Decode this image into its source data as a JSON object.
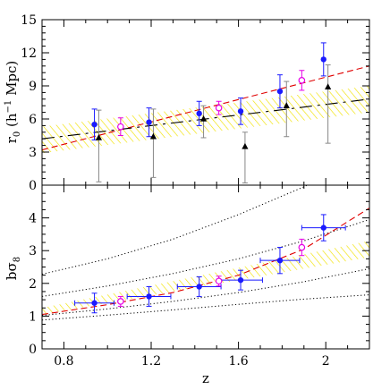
{
  "chart_data": [
    {
      "type": "scatter",
      "panel": "top",
      "ylabel": "r",
      "ylabel_sub": "0",
      "ylabel_rest": " (h",
      "ylabel_sup": "−1",
      "ylabel_end": " Mpc)",
      "ylim": [
        0,
        15
      ],
      "yticks": [
        0,
        3,
        6,
        9,
        12,
        15
      ],
      "xlim": [
        0.7,
        2.2
      ],
      "grid": false,
      "band": {
        "x": [
          0.7,
          2.2
        ],
        "lower": [
          2.9,
          6.6
        ],
        "upper": [
          5.3,
          9.0
        ],
        "color": "#f2e200"
      },
      "lines": [
        {
          "style": "dashed",
          "color": "#e00000",
          "x": [
            0.7,
            2.2
          ],
          "y": [
            3.2,
            10.8
          ]
        },
        {
          "style": "longdash",
          "color": "#000000",
          "x": [
            0.7,
            2.2
          ],
          "y": [
            4.2,
            7.8
          ]
        }
      ],
      "series": [
        {
          "marker": "filled-circle",
          "color": "#1a1aff",
          "x": [
            0.94,
            1.19,
            1.42,
            1.61,
            1.79,
            1.99
          ],
          "y": [
            5.5,
            5.7,
            6.5,
            6.7,
            8.5,
            11.4
          ],
          "yerr": [
            1.4,
            1.3,
            1.1,
            1.2,
            1.5,
            1.5
          ]
        },
        {
          "marker": "open-circle",
          "color": "#e600e6",
          "x": [
            1.06,
            1.51,
            1.89
          ],
          "y": [
            5.3,
            7.0,
            9.5
          ],
          "yerr": [
            0.8,
            0.6,
            0.9
          ]
        },
        {
          "marker": "filled-triangle",
          "color": "#000000",
          "x": [
            0.96,
            1.21,
            1.44,
            1.63,
            1.82,
            2.01
          ],
          "y": [
            4.3,
            4.4,
            6.0,
            3.5,
            7.2,
            8.9
          ],
          "yerr_lo": [
            4.0,
            3.7,
            1.7,
            3.3,
            2.8,
            5.1
          ],
          "yerr_hi": [
            2.5,
            2.5,
            1.2,
            1.3,
            2.2,
            2.0
          ],
          "errcolor": "#888888"
        }
      ]
    },
    {
      "type": "scatter",
      "panel": "bottom",
      "ylabel": "bσ",
      "ylabel_sub": "8",
      "xlabel": "z",
      "ylim": [
        0,
        5
      ],
      "yticks": [
        0,
        1,
        2,
        3,
        4
      ],
      "xlim": [
        0.7,
        2.2
      ],
      "xticks": [
        0.8,
        1.2,
        1.6,
        2.0
      ],
      "xtick_labels": [
        "0.8",
        "1.2",
        "1.6",
        "2"
      ],
      "grid": false,
      "band": {
        "x": [
          0.7,
          2.2
        ],
        "lower": [
          1.05,
          2.8
        ],
        "upper": [
          1.25,
          3.3
        ],
        "color": "#f2e200"
      },
      "dotted_curves": [
        {
          "x": [
            0.7,
            1.0,
            1.3,
            1.6,
            1.9,
            2.2
          ],
          "y": [
            2.28,
            2.75,
            3.35,
            4.1,
            4.95,
            6.0
          ]
        },
        {
          "x": [
            0.7,
            1.0,
            1.3,
            1.6,
            1.9,
            2.2
          ],
          "y": [
            1.6,
            1.92,
            2.3,
            2.75,
            3.3,
            3.95
          ]
        },
        {
          "x": [
            0.7,
            1.0,
            1.3,
            1.6,
            1.9,
            2.2
          ],
          "y": [
            1.02,
            1.22,
            1.45,
            1.72,
            2.05,
            2.45
          ]
        },
        {
          "x": [
            0.7,
            1.0,
            1.3,
            1.6,
            1.9,
            2.2
          ],
          "y": [
            0.88,
            1.03,
            1.19,
            1.36,
            1.52,
            1.65
          ]
        }
      ],
      "lines": [
        {
          "style": "dashed",
          "color": "#e00000",
          "x": [
            0.7,
            1.0,
            1.3,
            1.6,
            1.9,
            2.2
          ],
          "y": [
            1.05,
            1.35,
            1.72,
            2.25,
            3.05,
            4.3
          ]
        }
      ],
      "series": [
        {
          "marker": "filled-circle",
          "color": "#1a1aff",
          "x": [
            0.94,
            1.19,
            1.42,
            1.61,
            1.79,
            1.99
          ],
          "y": [
            1.4,
            1.6,
            1.9,
            2.1,
            2.7,
            3.7
          ],
          "yerr": [
            0.3,
            0.3,
            0.3,
            0.3,
            0.4,
            0.4
          ],
          "xerr": [
            0.09,
            0.1,
            0.1,
            0.1,
            0.09,
            0.1
          ]
        },
        {
          "marker": "open-circle",
          "color": "#e600e6",
          "x": [
            1.06,
            1.51,
            1.89
          ],
          "y": [
            1.45,
            2.07,
            3.1
          ],
          "yerr": [
            0.15,
            0.15,
            0.25
          ]
        }
      ]
    }
  ]
}
